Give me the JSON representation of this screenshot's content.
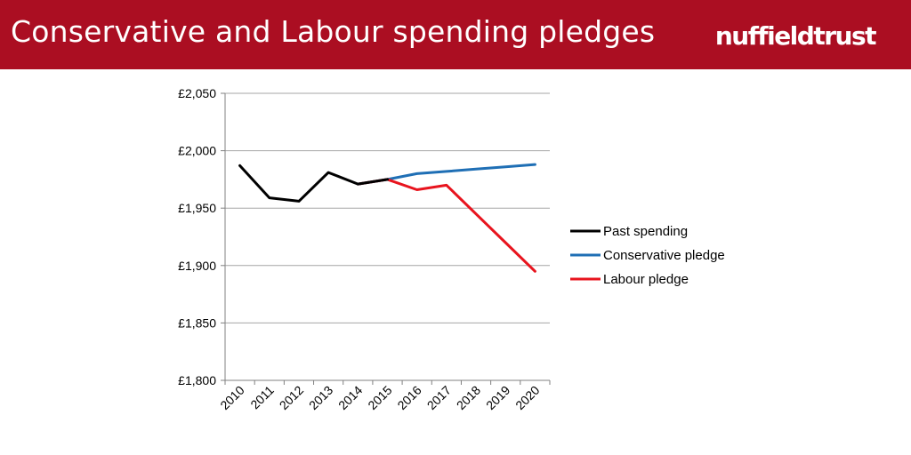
{
  "header": {
    "title": "Conservative and Labour spending pledges",
    "logo_text": "nuffieldtrust",
    "background_color": "#ab0e22"
  },
  "chart_data": {
    "type": "line",
    "title": "",
    "xlabel": "",
    "ylabel": "",
    "categories": [
      "2010",
      "2011",
      "2012",
      "2013",
      "2014",
      "2015",
      "2016",
      "2017",
      "2018",
      "2019",
      "2020"
    ],
    "y_tick_labels": [
      "£1,800",
      "£1,850",
      "£1,900",
      "£1,950",
      "£2,000",
      "£2,050"
    ],
    "ylim": [
      1800,
      2050
    ],
    "grid": true,
    "legend_position": "right",
    "series": [
      {
        "name": "Past spending",
        "color": "#000000",
        "points": [
          [
            2010,
            1987
          ],
          [
            2011,
            1959
          ],
          [
            2012,
            1956
          ],
          [
            2013,
            1981
          ],
          [
            2014,
            1971
          ],
          [
            2015,
            1975
          ]
        ]
      },
      {
        "name": "Conservative pledge",
        "color": "#1f6fb5",
        "points": [
          [
            2014,
            1971
          ],
          [
            2015,
            1975
          ],
          [
            2016,
            1980
          ],
          [
            2017,
            1982
          ],
          [
            2018,
            1984
          ],
          [
            2019,
            1986
          ],
          [
            2020,
            1988
          ]
        ]
      },
      {
        "name": "Labour pledge",
        "color": "#e8141e",
        "points": [
          [
            2014,
            1971
          ],
          [
            2015,
            1975
          ],
          [
            2016,
            1966
          ],
          [
            2017,
            1970
          ],
          [
            2018,
            1945
          ],
          [
            2019,
            1920
          ],
          [
            2020,
            1895
          ]
        ]
      }
    ]
  }
}
